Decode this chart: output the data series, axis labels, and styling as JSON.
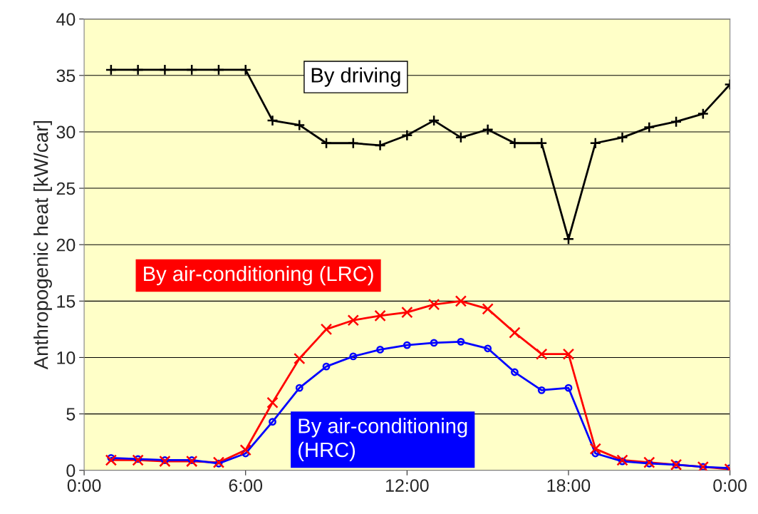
{
  "chart_data": {
    "type": "line",
    "ylabel": "Anthropogenic heat [kW/car]",
    "x": [
      1,
      2,
      3,
      4,
      5,
      6,
      7,
      8,
      9,
      10,
      11,
      12,
      13,
      14,
      15,
      16,
      17,
      18,
      19,
      20,
      21,
      22,
      23,
      24
    ],
    "series": [
      {
        "name": "By driving",
        "color": "#000000",
        "marker": "plus",
        "values": [
          35.5,
          35.5,
          35.5,
          35.5,
          35.5,
          35.5,
          31.0,
          30.6,
          29.0,
          29.0,
          28.8,
          29.7,
          31.0,
          29.5,
          30.2,
          29.0,
          29.0,
          20.5,
          29.0,
          29.5,
          30.4,
          30.9,
          31.6,
          34.2
        ]
      },
      {
        "name": "By air-conditioning (LRC)",
        "color": "#ff0000",
        "marker": "cross",
        "values": [
          0.9,
          0.9,
          0.8,
          0.8,
          0.7,
          1.8,
          6.0,
          9.9,
          12.5,
          13.3,
          13.7,
          14.0,
          14.7,
          15.0,
          14.3,
          12.2,
          10.3,
          10.3,
          1.9,
          0.9,
          0.7,
          0.5,
          0.3,
          0.1
        ]
      },
      {
        "name": "By air-conditioning\n(HRC)",
        "color": "#0000ff",
        "marker": "circle",
        "values": [
          1.1,
          1.0,
          0.9,
          0.9,
          0.6,
          1.5,
          4.3,
          7.3,
          9.2,
          10.1,
          10.7,
          11.1,
          11.3,
          11.4,
          10.8,
          8.7,
          7.1,
          7.3,
          1.5,
          0.8,
          0.6,
          0.5,
          0.3,
          0.2
        ]
      }
    ],
    "xlim": [
      0,
      24
    ],
    "ylim": [
      0,
      40
    ],
    "xticks": [
      {
        "value": 0,
        "label": "0:00"
      },
      {
        "value": 6,
        "label": "6:00"
      },
      {
        "value": 12,
        "label": "12:00"
      },
      {
        "value": 18,
        "label": "18:00"
      },
      {
        "value": 24,
        "label": "0:00"
      }
    ],
    "yticks": [
      0,
      5,
      10,
      15,
      20,
      25,
      30,
      35,
      40
    ],
    "grid": "y",
    "legend": false
  }
}
